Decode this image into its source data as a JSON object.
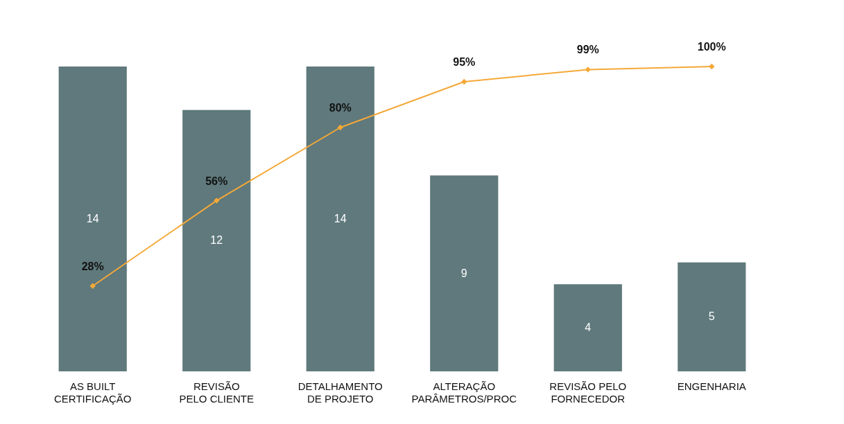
{
  "chart_data": {
    "type": "bar",
    "categories": [
      "AS BUILT\nCERTIFICAÇÃO",
      "REVISÃO\nPELO CLIENTE",
      "DETALHAMENTO\nDE PROJETO",
      "ALTERAÇÃO\nPARÂMETROS/PROC",
      "REVISÃO  PELO\nFORNECEDOR",
      "ENGENHARIA"
    ],
    "series": [
      {
        "color": "#5f797c",
        "values": [
          14,
          12,
          14,
          9,
          4,
          5
        ]
      },
      {
        "type": "line",
        "axis": "y2",
        "color": "#f5a838",
        "values": [
          28,
          56,
          80,
          95,
          99,
          100
        ],
        "value_labels": [
          "28%",
          "56%",
          "80%",
          "95%",
          "99%",
          "100%"
        ]
      }
    ],
    "data_labels": true,
    "tick_labels": "x",
    "grid": false,
    "marker": "diamond",
    "line_style": "solid"
  }
}
